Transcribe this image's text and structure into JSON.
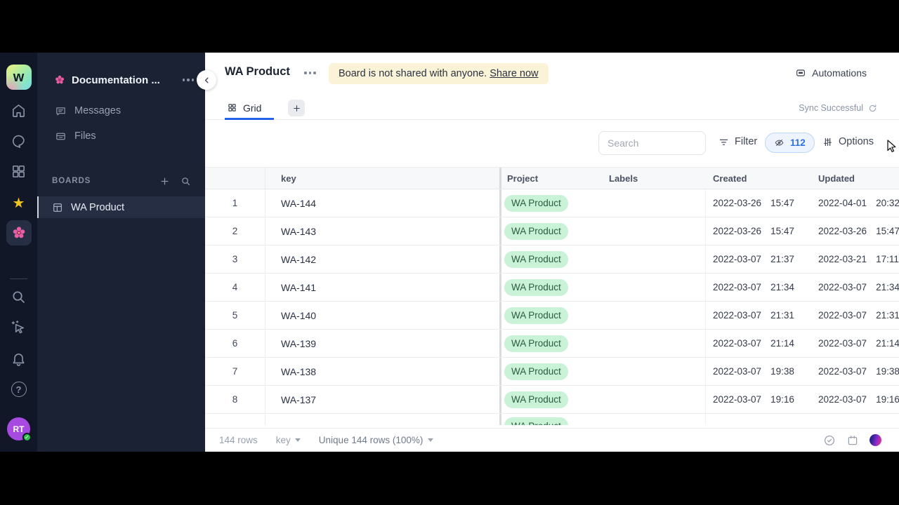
{
  "rail": {
    "logo_letter": "w",
    "help_glyph": "?",
    "avatar_initials": "RT"
  },
  "sidebar": {
    "workspace_name": "Documentation ...",
    "nav": [
      {
        "label": "Messages"
      },
      {
        "label": "Files"
      }
    ],
    "boards_section": "BOARDS",
    "board_name": "WA Product"
  },
  "header": {
    "title": "WA Product",
    "banner_text": "Board is not shared with anyone.",
    "banner_link": "Share now",
    "automations_label": "Automations"
  },
  "tabs": {
    "grid_label": "Grid",
    "sync_status": "Sync Successful"
  },
  "toolbar": {
    "search_placeholder": "Search",
    "filter_label": "Filter",
    "hidden_count": "112",
    "options_label": "Options"
  },
  "table": {
    "columns": [
      "key",
      "Project",
      "Labels",
      "Created",
      "Updated"
    ],
    "rows": [
      {
        "num": "1",
        "key": "WA-144",
        "project": "WA Product",
        "labels": "",
        "created": [
          "2022-03-26",
          "15:47"
        ],
        "updated": [
          "2022-04-01",
          "20:32"
        ]
      },
      {
        "num": "2",
        "key": "WA-143",
        "project": "WA Product",
        "labels": "",
        "created": [
          "2022-03-26",
          "15:47"
        ],
        "updated": [
          "2022-03-26",
          "15:47"
        ]
      },
      {
        "num": "3",
        "key": "WA-142",
        "project": "WA Product",
        "labels": "",
        "created": [
          "2022-03-07",
          "21:37"
        ],
        "updated": [
          "2022-03-21",
          "17:11"
        ]
      },
      {
        "num": "4",
        "key": "WA-141",
        "project": "WA Product",
        "labels": "",
        "created": [
          "2022-03-07",
          "21:34"
        ],
        "updated": [
          "2022-03-07",
          "21:34"
        ]
      },
      {
        "num": "5",
        "key": "WA-140",
        "project": "WA Product",
        "labels": "",
        "created": [
          "2022-03-07",
          "21:31"
        ],
        "updated": [
          "2022-03-07",
          "21:31"
        ]
      },
      {
        "num": "6",
        "key": "WA-139",
        "project": "WA Product",
        "labels": "",
        "created": [
          "2022-03-07",
          "21:14"
        ],
        "updated": [
          "2022-03-07",
          "21:14"
        ]
      },
      {
        "num": "7",
        "key": "WA-138",
        "project": "WA Product",
        "labels": "",
        "created": [
          "2022-03-07",
          "19:38"
        ],
        "updated": [
          "2022-03-07",
          "19:38"
        ]
      },
      {
        "num": "8",
        "key": "WA-137",
        "project": "WA Product",
        "labels": "",
        "created": [
          "2022-03-07",
          "19:16"
        ],
        "updated": [
          "2022-03-07",
          "19:16"
        ]
      },
      {
        "num": "",
        "key": "",
        "project": "WA Product",
        "labels": "",
        "created": [
          "",
          ""
        ],
        "updated": [
          "",
          ""
        ],
        "partial": true
      }
    ]
  },
  "footer": {
    "row_count": "144 rows",
    "group_key": "key",
    "unique_summary": "Unique 144 rows (100%)"
  },
  "colors": {
    "accent_blue": "#2563eb",
    "banner_yellow": "#fbf3d8",
    "badge_green_bg": "#c9f2d6",
    "badge_green_text": "#2a5d44",
    "pill_blue_bg": "#edf4fd",
    "pill_blue_border": "#bcd7f7",
    "pill_blue_text": "#2f6fe0",
    "rail_bg": "#111726",
    "sidebar_bg": "#1a2233"
  }
}
